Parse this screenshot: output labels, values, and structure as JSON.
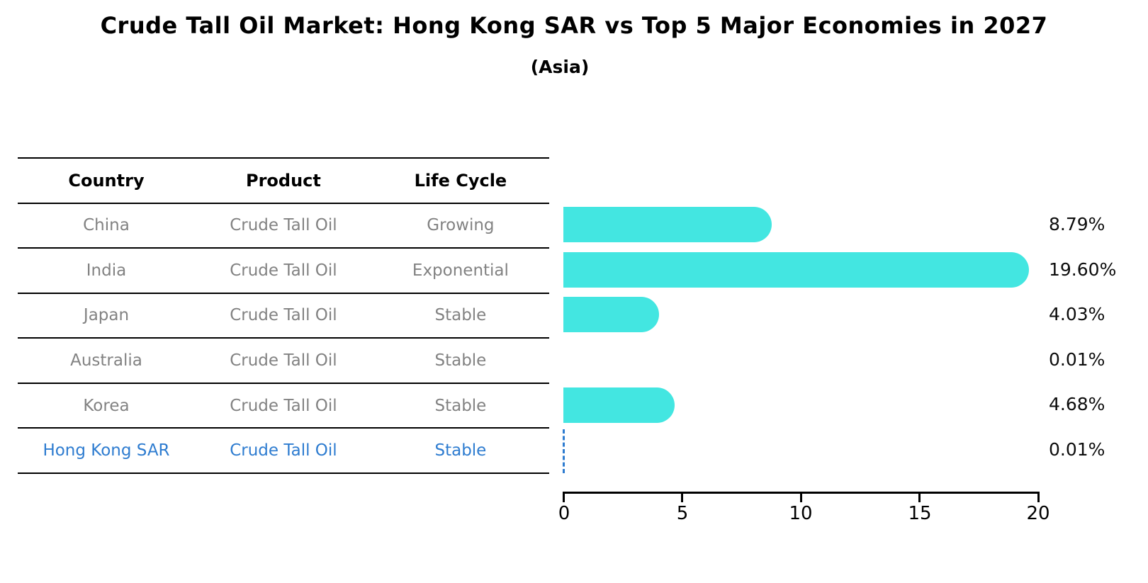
{
  "title": "Crude Tall Oil Market: Hong Kong SAR vs Top 5 Major Economies in 2027",
  "subtitle": "(Asia)",
  "table": {
    "headers": {
      "country": "Country",
      "product": "Product",
      "life_cycle": "Life Cycle"
    },
    "rows": [
      {
        "country": "China",
        "product": "Crude Tall Oil",
        "life_cycle": "Growing",
        "highlight": false
      },
      {
        "country": "India",
        "product": "Crude Tall Oil",
        "life_cycle": "Exponential",
        "highlight": false
      },
      {
        "country": "Japan",
        "product": "Crude Tall Oil",
        "life_cycle": "Stable",
        "highlight": false
      },
      {
        "country": "Australia",
        "product": "Crude Tall Oil",
        "life_cycle": "Stable",
        "highlight": false
      },
      {
        "country": "Korea",
        "product": "Crude Tall Oil",
        "life_cycle": "Stable",
        "highlight": false
      },
      {
        "country": "Hong Kong SAR",
        "product": "Crude Tall Oil",
        "life_cycle": "Stable",
        "highlight": true
      }
    ]
  },
  "chart_data": {
    "type": "bar",
    "orientation": "horizontal",
    "categories": [
      "China",
      "India",
      "Japan",
      "Australia",
      "Korea",
      "Hong Kong SAR"
    ],
    "values": [
      8.79,
      19.6,
      4.03,
      0.01,
      4.68,
      0.01
    ],
    "value_labels": [
      "8.79%",
      "19.60%",
      "4.03%",
      "0.01%",
      "4.68%",
      "0.01%"
    ],
    "x_ticks": [
      "0",
      "5",
      "10",
      "15",
      "20"
    ],
    "xlim": [
      0,
      20
    ],
    "grid": false,
    "legend": "none",
    "highlight_index": 5,
    "highlight_marker": "dashed-zero-line"
  },
  "colors": {
    "bar": "#43E6E1",
    "highlight_blue": "#2E7CD0",
    "row_text_gray": "#828282",
    "axis_black": "#000000"
  }
}
